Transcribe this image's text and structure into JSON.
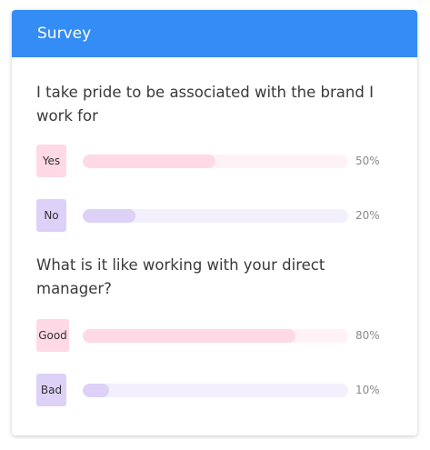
{
  "survey": {
    "title": "Survey",
    "accent_color": "#348cf5",
    "questions": [
      {
        "text": "I take pride to be associated with the brand I work for",
        "options": [
          {
            "label": "Yes",
            "percent_label": "50%",
            "value": 50,
            "color": "#ffd9e5"
          },
          {
            "label": "No",
            "percent_label": "20%",
            "value": 20,
            "color": "#ddd1f7"
          }
        ]
      },
      {
        "text": "What is it like working with your direct manager?",
        "options": [
          {
            "label": "Good",
            "percent_label": "80%",
            "value": 80,
            "color": "#ffd9e5"
          },
          {
            "label": "Bad",
            "percent_label": "10%",
            "value": 10,
            "color": "#ddd1f7"
          }
        ]
      }
    ]
  }
}
